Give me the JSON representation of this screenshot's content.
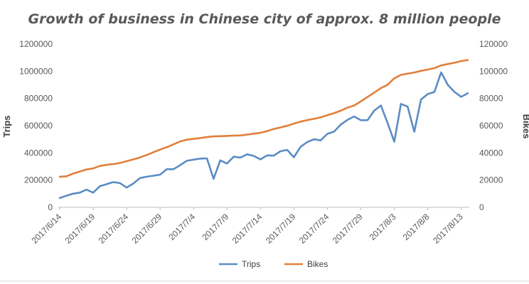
{
  "chart_data": {
    "type": "line",
    "title": "Growth of business in Chinese city of approx. 8 million people",
    "ylabel": "Trips",
    "y2label": "Bikes",
    "ylim": [
      0,
      1200000
    ],
    "y2lim": [
      0,
      120000
    ],
    "yticks": [
      "0",
      "200000",
      "400000",
      "600000",
      "800000",
      "1000000",
      "1200000"
    ],
    "y2ticks": [
      "0",
      "20000",
      "40000",
      "60000",
      "80000",
      "100000",
      "120000"
    ],
    "xticks": [
      "2017/6/14",
      "2017/6/19",
      "2017/6/24",
      "2017/6/29",
      "2017/7/4",
      "2017/7/9",
      "2017/7/14",
      "2017/7/19",
      "2017/7/24",
      "2017/7/29",
      "2017/8/3",
      "2017/8/8",
      "2017/8/13"
    ],
    "x": [
      "2017/6/14",
      "2017/6/15",
      "2017/6/16",
      "2017/6/17",
      "2017/6/18",
      "2017/6/19",
      "2017/6/20",
      "2017/6/21",
      "2017/6/22",
      "2017/6/23",
      "2017/6/24",
      "2017/6/25",
      "2017/6/26",
      "2017/6/27",
      "2017/6/28",
      "2017/6/29",
      "2017/6/30",
      "2017/7/1",
      "2017/7/2",
      "2017/7/3",
      "2017/7/4",
      "2017/7/5",
      "2017/7/6",
      "2017/7/7",
      "2017/7/8",
      "2017/7/9",
      "2017/7/10",
      "2017/7/11",
      "2017/7/12",
      "2017/7/13",
      "2017/7/14",
      "2017/7/15",
      "2017/7/16",
      "2017/7/17",
      "2017/7/18",
      "2017/7/19",
      "2017/7/20",
      "2017/7/21",
      "2017/7/22",
      "2017/7/23",
      "2017/7/24",
      "2017/7/25",
      "2017/7/26",
      "2017/7/27",
      "2017/7/28",
      "2017/7/29",
      "2017/7/30",
      "2017/7/31",
      "2017/8/1",
      "2017/8/2",
      "2017/8/3",
      "2017/8/4",
      "2017/8/5",
      "2017/8/6",
      "2017/8/7",
      "2017/8/8",
      "2017/8/9",
      "2017/8/10",
      "2017/8/11",
      "2017/8/12",
      "2017/8/13",
      "2017/8/14"
    ],
    "series": [
      {
        "name": "Trips",
        "axis": "left",
        "color": "#5b8cc4",
        "values": [
          68000,
          85000,
          100000,
          108000,
          130000,
          108000,
          155000,
          170000,
          185000,
          178000,
          145000,
          175000,
          215000,
          225000,
          232000,
          240000,
          280000,
          280000,
          310000,
          342000,
          350000,
          358000,
          360000,
          210000,
          345000,
          322000,
          372000,
          365000,
          390000,
          378000,
          352000,
          382000,
          380000,
          412000,
          422000,
          368000,
          445000,
          480000,
          500000,
          492000,
          540000,
          556000,
          608000,
          642000,
          668000,
          640000,
          640000,
          710000,
          748000,
          620000,
          482000,
          760000,
          740000,
          555000,
          792000,
          832000,
          848000,
          992000,
          900000,
          848000,
          812000,
          838000
        ]
      },
      {
        "name": "Bikes",
        "axis": "right",
        "color": "#e17f3b",
        "values": [
          22500,
          22800,
          24800,
          26300,
          27800,
          28600,
          30400,
          31200,
          31800,
          32600,
          33900,
          35200,
          36700,
          38400,
          40500,
          42400,
          44200,
          46300,
          48400,
          49700,
          50300,
          50900,
          51600,
          52100,
          52300,
          52500,
          52700,
          52800,
          53400,
          54100,
          54800,
          56000,
          57600,
          58700,
          59900,
          61500,
          63000,
          64100,
          65000,
          66100,
          67700,
          69200,
          71000,
          73200,
          74800,
          77800,
          81100,
          84300,
          87600,
          90100,
          94800,
          97300,
          98300,
          99100,
          100300,
          101200,
          102300,
          104300,
          105300,
          106200,
          107500,
          108200
        ]
      }
    ],
    "legend": "bottom",
    "grid": false
  }
}
